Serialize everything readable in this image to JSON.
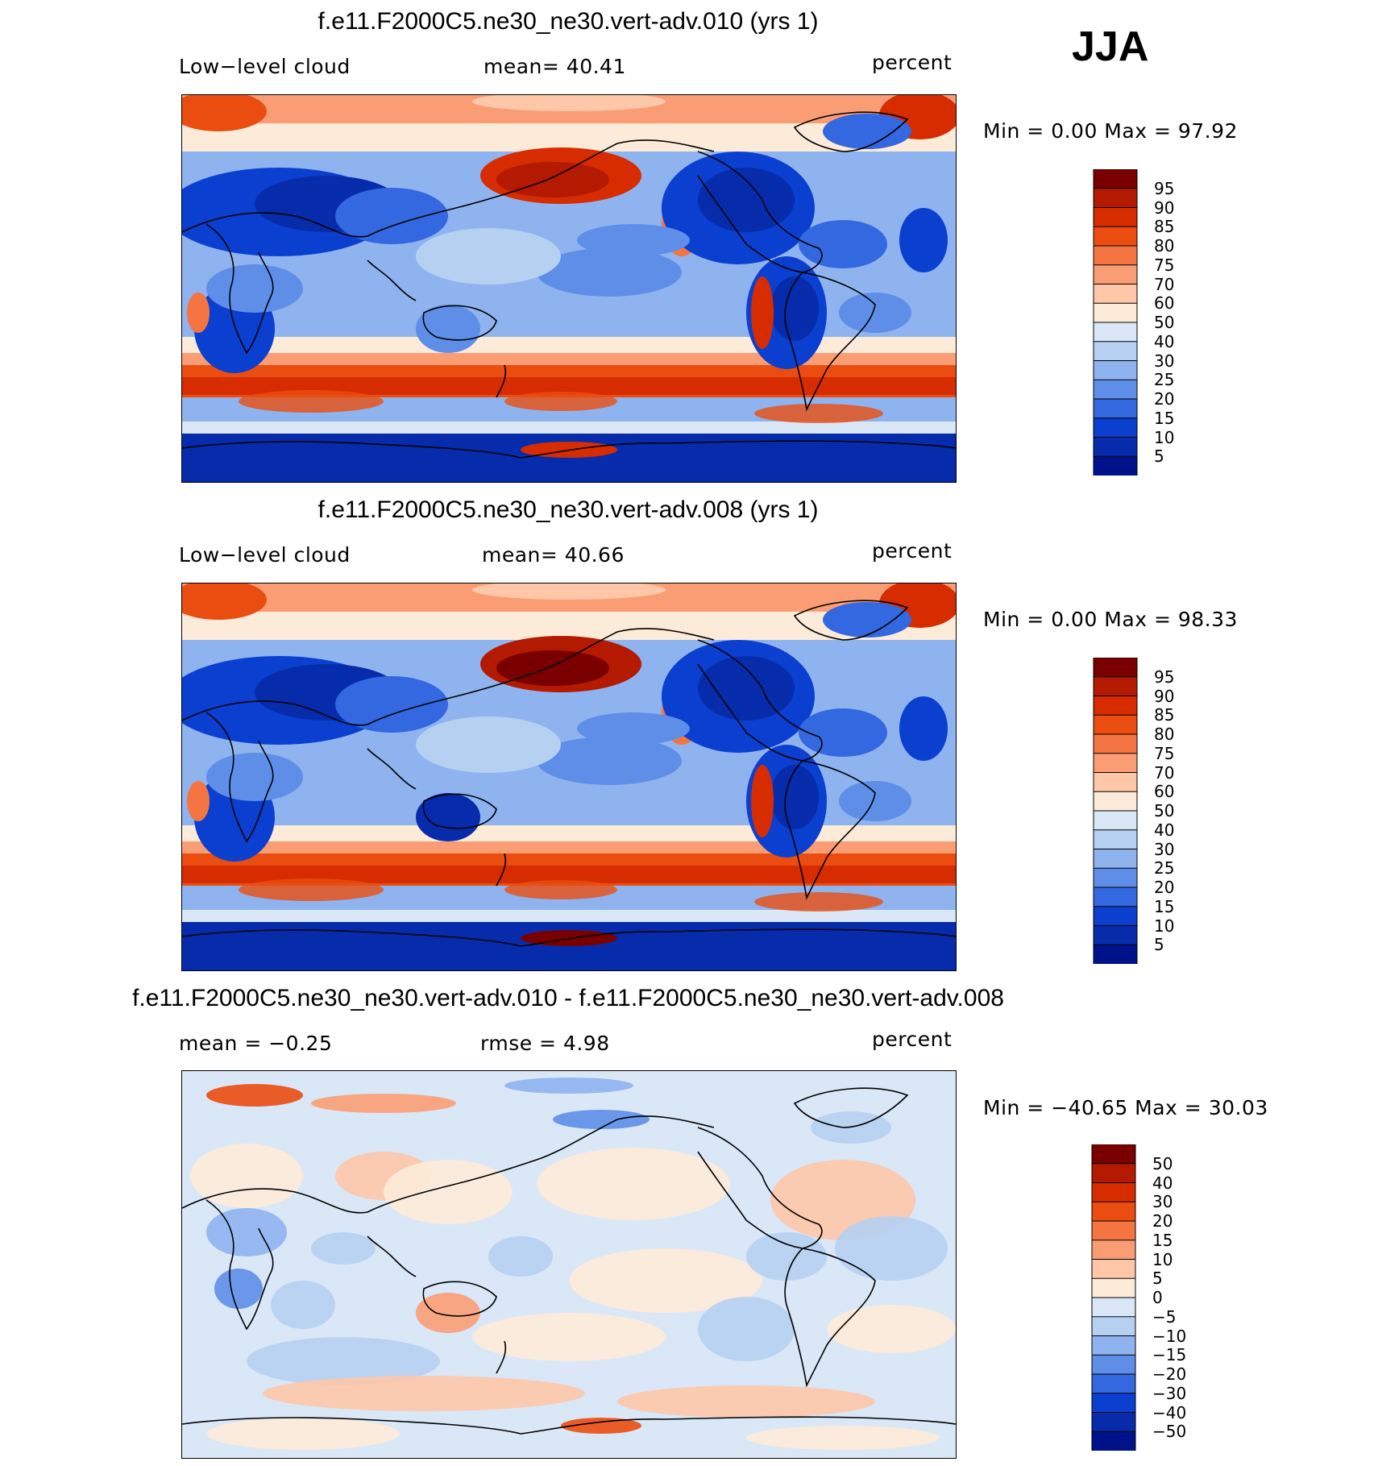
{
  "season": "JJA",
  "panels": [
    {
      "title": "f.e11.F2000C5.ne30_ne30.vert-adv.010 (yrs 1)",
      "variable": "Low−level cloud",
      "stat1": "mean=   40.41",
      "units": "percent",
      "minmax": "Min =     0.00  Max =    97.92",
      "colorbar": {
        "labels": [
          "95",
          "90",
          "85",
          "80",
          "75",
          "70",
          "60",
          "50",
          "40",
          "30",
          "25",
          "20",
          "15",
          "10",
          "5"
        ],
        "colors": [
          "#7a0000",
          "#b31a00",
          "#d62c00",
          "#ea4d0f",
          "#f47442",
          "#fb9d74",
          "#fdc7a8",
          "#fdebd9",
          "#dae7f7",
          "#b6d0f2",
          "#8fb3ef",
          "#5e8ee8",
          "#3368e0",
          "#0b3fd0",
          "#062cac",
          "#00128a"
        ]
      },
      "variant": 0
    },
    {
      "title": "f.e11.F2000C5.ne30_ne30.vert-adv.008 (yrs 1)",
      "variable": "Low−level cloud",
      "stat1": "mean=   40.66",
      "units": "percent",
      "minmax": "Min =     0.00  Max =    98.33",
      "colorbar": {
        "labels": [
          "95",
          "90",
          "85",
          "80",
          "75",
          "70",
          "60",
          "50",
          "40",
          "30",
          "25",
          "20",
          "15",
          "10",
          "5"
        ],
        "colors": [
          "#7a0000",
          "#b31a00",
          "#d62c00",
          "#ea4d0f",
          "#f47442",
          "#fb9d74",
          "#fdc7a8",
          "#fdebd9",
          "#dae7f7",
          "#b6d0f2",
          "#8fb3ef",
          "#5e8ee8",
          "#3368e0",
          "#0b3fd0",
          "#062cac",
          "#00128a"
        ]
      },
      "variant": 1
    },
    {
      "title": "f.e11.F2000C5.ne30_ne30.vert-adv.010 - f.e11.F2000C5.ne30_ne30.vert-adv.008",
      "variable": "mean =   −0.25",
      "stat1": "rmse =     4.98",
      "units": "percent",
      "minmax": "Min = −40.65  Max =    30.03",
      "colorbar": {
        "labels": [
          "50",
          "40",
          "30",
          "20",
          "15",
          "10",
          "5",
          "0",
          "−5",
          "−10",
          "−15",
          "−20",
          "−30",
          "−40",
          "−50"
        ],
        "colors": [
          "#7a0000",
          "#b31a00",
          "#d62c00",
          "#ea4d0f",
          "#f47442",
          "#fb9d74",
          "#fdc7a8",
          "#fdebd9",
          "#dae7f7",
          "#b6d0f2",
          "#8fb3ef",
          "#5e8ee8",
          "#3368e0",
          "#0b3fd0",
          "#062cac",
          "#00128a"
        ]
      },
      "variant": 2
    }
  ]
}
